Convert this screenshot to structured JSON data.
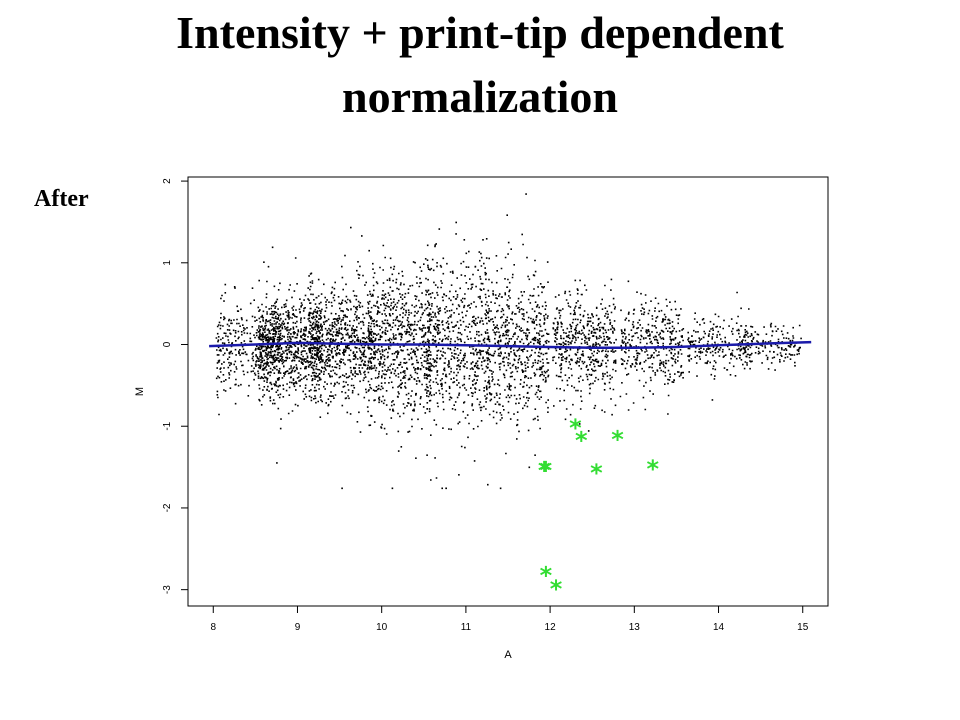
{
  "slide": {
    "title_line_1": "Intensity + print-tip dependent",
    "title_line_2": "normalization",
    "panel_label": "After"
  },
  "colors": {
    "points": "#000000",
    "loess_line": "#1a1aaa",
    "highlight": "#33dd33",
    "frame": "#000000"
  },
  "chart_data": {
    "type": "scatter",
    "title": "",
    "xlabel": "A",
    "ylabel": "M",
    "xlim": [
      7.7,
      15.3
    ],
    "ylim": [
      -3.2,
      2.05
    ],
    "xticks": [
      8,
      9,
      10,
      11,
      12,
      13,
      14,
      15
    ],
    "yticks": [
      -3,
      -2,
      -1,
      0,
      1,
      2
    ],
    "grid": false,
    "legend": "none",
    "point_cloud": {
      "description_points": 5000,
      "density_profile": [
        {
          "x": 8.4,
          "spread": 0.28,
          "weight": 0.06
        },
        {
          "x": 8.9,
          "spread": 0.3,
          "weight": 0.16
        },
        {
          "x": 9.5,
          "spread": 0.35,
          "weight": 0.14
        },
        {
          "x": 10.2,
          "spread": 0.45,
          "weight": 0.14
        },
        {
          "x": 10.9,
          "spread": 0.52,
          "weight": 0.13
        },
        {
          "x": 11.6,
          "spread": 0.45,
          "weight": 0.12
        },
        {
          "x": 12.4,
          "spread": 0.32,
          "weight": 0.1
        },
        {
          "x": 13.2,
          "spread": 0.25,
          "weight": 0.07
        },
        {
          "x": 14.0,
          "spread": 0.17,
          "weight": 0.05
        },
        {
          "x": 14.6,
          "spread": 0.12,
          "weight": 0.03
        }
      ],
      "x_range": [
        7.9,
        15.05
      ]
    },
    "loess_line": {
      "x": [
        7.95,
        8.5,
        9.0,
        9.5,
        10.0,
        10.5,
        11.0,
        11.5,
        12.0,
        12.5,
        13.0,
        13.5,
        14.0,
        14.5,
        15.1
      ],
      "y": [
        -0.02,
        0.0,
        0.02,
        0.01,
        0.0,
        0.0,
        -0.01,
        -0.02,
        -0.03,
        -0.04,
        -0.04,
        -0.03,
        -0.01,
        0.01,
        0.03
      ]
    },
    "highlighted_points": {
      "symbol": "*",
      "x": [
        11.93,
        12.3,
        12.37,
        12.8,
        11.95,
        12.55,
        13.22,
        11.95,
        12.07
      ],
      "y": [
        -1.52,
        -1.0,
        -1.15,
        -1.14,
        -1.52,
        -1.55,
        -1.5,
        -2.8,
        -2.97
      ]
    }
  }
}
